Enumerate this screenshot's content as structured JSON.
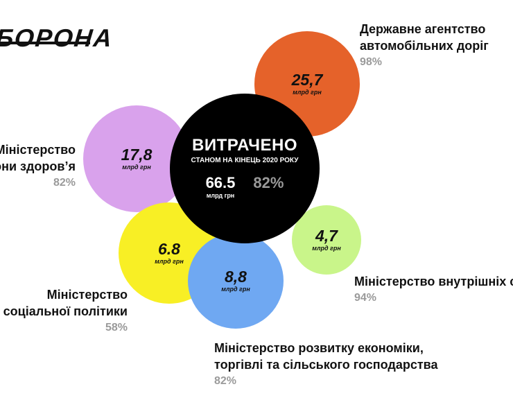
{
  "logo": {
    "text": "БОРОНА"
  },
  "center": {
    "title": "ВИТРАЧЕНО",
    "subtitle": "СТАНОМ НА КІНЕЦЬ 2020 РОКУ",
    "value": "66.5",
    "unit": "млрд грн",
    "percent": "82%",
    "color": "#000000"
  },
  "chart_data": {
    "type": "bubble",
    "unit": "млрд грн",
    "total": {
      "label": "ВИТРАЧЕНО",
      "value": 66.5,
      "percent": 82
    },
    "bubbles": [
      {
        "id": "roads",
        "value_label": "25,7",
        "value": 25.7,
        "percent": "98%",
        "name_lines": [
          "Державне агентство",
          "автомобільних доріг"
        ],
        "color": "#E5622A"
      },
      {
        "id": "health",
        "value_label": "17,8",
        "value": 17.8,
        "percent": "82%",
        "name_lines": [
          "Міністерство",
          "они здоров’я"
        ],
        "color": "#D9A2EC"
      },
      {
        "id": "social",
        "value_label": "6.8",
        "value": 6.8,
        "percent": "58%",
        "name_lines": [
          "Міністерство",
          "соціальної політики"
        ],
        "color": "#F8EF25"
      },
      {
        "id": "economy",
        "value_label": "8,8",
        "value": 8.8,
        "percent": "82%",
        "name_lines": [
          "Міністерство розвитку економіки,",
          "торгівлі та сільського господарства"
        ],
        "color": "#6FA8F2"
      },
      {
        "id": "interior",
        "value_label": "4,7",
        "value": 4.7,
        "percent": "94%",
        "name_lines": [
          "Міністерство внутрішніх с"
        ],
        "color": "#C9F58A"
      }
    ]
  }
}
